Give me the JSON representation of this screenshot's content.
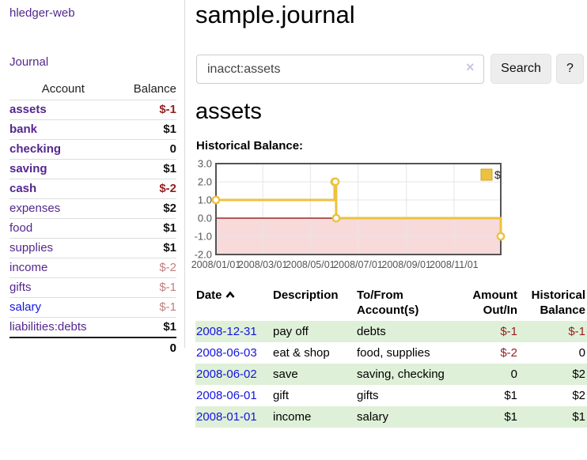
{
  "app": {
    "brand": "hledger-web",
    "nav_journal": "Journal"
  },
  "sidebar": {
    "header": {
      "account": "Account",
      "balance": "Balance"
    },
    "accounts": [
      {
        "name": "assets",
        "depth": 1,
        "bold": true,
        "balance": "$-1",
        "neg": "strong"
      },
      {
        "name": "bank",
        "depth": 2,
        "bold": true,
        "balance": "$1"
      },
      {
        "name": "checking",
        "depth": 3,
        "bold": true,
        "balance": "0"
      },
      {
        "name": "saving",
        "depth": 3,
        "bold": true,
        "balance": "$1"
      },
      {
        "name": "cash",
        "depth": 2,
        "bold": true,
        "balance": "$-2",
        "neg": "strong"
      },
      {
        "name": "expenses",
        "depth": 1,
        "bold": false,
        "balance": "$2"
      },
      {
        "name": "food",
        "depth": 2,
        "bold": false,
        "balance": "$1"
      },
      {
        "name": "supplies",
        "depth": 2,
        "bold": false,
        "balance": "$1"
      },
      {
        "name": "income",
        "depth": 1,
        "bold": false,
        "balance": "$-2",
        "neg": "soft"
      },
      {
        "name": "gifts",
        "depth": 2,
        "bold": false,
        "balance": "$-1",
        "neg": "soft"
      },
      {
        "name": "salary",
        "depth": 2,
        "bold": false,
        "balance": "$-1",
        "neg": "soft",
        "link_color": "blue"
      },
      {
        "name": "liabilities:debts",
        "depth": 1,
        "bold": false,
        "balance": "$1"
      }
    ],
    "total": "0"
  },
  "main": {
    "title": "sample.journal",
    "search": {
      "value": "inacct:assets",
      "clear_icon": "×",
      "search_button": "Search",
      "help_button": "?"
    },
    "account_heading": "assets",
    "chart_label": "Historical Balance:"
  },
  "chart_data": {
    "type": "line",
    "title": "Historical Balance",
    "step": true,
    "series": [
      {
        "name": "$",
        "color": "#edc240",
        "points": [
          [
            "2008-01-01",
            1
          ],
          [
            "2008-06-01",
            2
          ],
          [
            "2008-06-02",
            2
          ],
          [
            "2008-06-03",
            0
          ],
          [
            "2008-12-31",
            -1
          ]
        ]
      }
    ],
    "x_range": [
      "2008-01-01",
      "2008-12-31"
    ],
    "ylim": [
      -2,
      3
    ],
    "y_ticks": [
      "3.0",
      "2.0",
      "1.0",
      "0.0",
      "-1.0",
      "-2.0"
    ],
    "x_ticks": [
      [
        "2008-01-01",
        "2008/01/01"
      ],
      [
        "2008-03-01",
        "2008/03/01"
      ],
      [
        "2008-05-01",
        "2008/05/01"
      ],
      [
        "2008-07-01",
        "2008/07/01"
      ],
      [
        "2008-09-01",
        "2008/09/01"
      ],
      [
        "2008-11-01",
        "2008/11/01"
      ]
    ],
    "grid": true,
    "legend_position": "top-right",
    "negative_fill": "#f8dada",
    "zero_line_color": "#8b0000",
    "border_color": "#545454",
    "grid_color": "#e6e6e6",
    "tick_color": "#555555"
  },
  "register": {
    "headers": [
      "Date",
      "Description",
      "To/From Account(s)",
      "Amount Out/In",
      "Historical Balance"
    ],
    "rows": [
      {
        "date": "2008-12-31",
        "description": "pay off",
        "accounts": "debts",
        "amount": "$-1",
        "amount_neg": true,
        "balance": "$-1",
        "balance_neg": true
      },
      {
        "date": "2008-06-03",
        "description": "eat & shop",
        "accounts": "food, supplies",
        "amount": "$-2",
        "amount_neg": true,
        "balance": "0",
        "balance_neg": false
      },
      {
        "date": "2008-06-02",
        "description": "save",
        "accounts": "saving, checking",
        "amount": "0",
        "amount_neg": false,
        "balance": "$2",
        "balance_neg": false
      },
      {
        "date": "2008-06-01",
        "description": "gift",
        "accounts": "gifts",
        "amount": "$1",
        "amount_neg": false,
        "balance": "$2",
        "balance_neg": false
      },
      {
        "date": "2008-01-01",
        "description": "income",
        "accounts": "salary",
        "amount": "$1",
        "amount_neg": false,
        "balance": "$1",
        "balance_neg": false
      }
    ]
  },
  "colors": {
    "link_purple": "#54278e",
    "link_blue": "#1414e0",
    "negative_strong": "#941f1f",
    "negative_soft": "#c17f7f",
    "row_green": "#dff0d8",
    "series_yellow": "#edc240"
  }
}
